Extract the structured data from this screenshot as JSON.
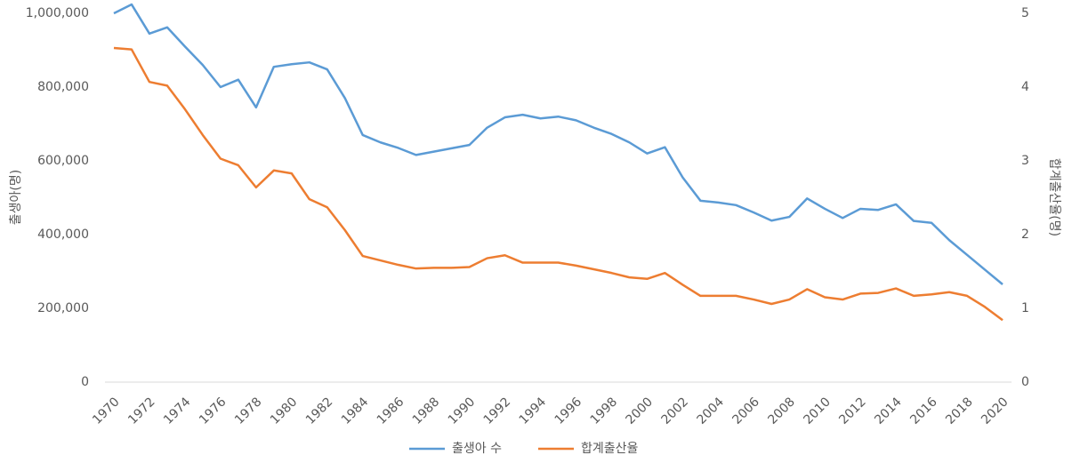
{
  "chart_data": {
    "type": "line",
    "categories": [
      "1970",
      null,
      "1972",
      null,
      "1974",
      null,
      "1976",
      null,
      "1978",
      null,
      "1980",
      null,
      "1982",
      null,
      "1984",
      null,
      "1986",
      null,
      "1988",
      null,
      "1990",
      null,
      "1992",
      null,
      "1994",
      null,
      "1996",
      null,
      "1998",
      null,
      "2000",
      null,
      "2002",
      null,
      "2004",
      null,
      "2006",
      null,
      "2008",
      null,
      "2010",
      null,
      "2012",
      null,
      "2014",
      null,
      "2016",
      null,
      "2018",
      null,
      "2020"
    ],
    "y_label": "출생아(명)",
    "y2_label": "합계출산율(명)",
    "ylim": [
      0,
      1000000
    ],
    "yticks": [
      0,
      {
        "value": 200000,
        "label": "200,000"
      },
      {
        "value": 400000,
        "label": "400,000"
      },
      {
        "value": 600000,
        "label": "600,000"
      },
      {
        "value": 800000,
        "label": "800,000"
      },
      {
        "value": 1000000,
        "label": "1,000,000"
      }
    ],
    "y2lim": [
      0,
      5
    ],
    "y2ticks": [
      0,
      1,
      2,
      3,
      4,
      5
    ],
    "legend": "bottom",
    "series": [
      {
        "name": "출생아 수",
        "color": "#5b9bd5",
        "values": [
          1000000,
          1024000,
          945000,
          962000,
          910000,
          860000,
          800000,
          820000,
          745000,
          855000,
          862000,
          867000,
          848000,
          770000,
          670000,
          650000,
          635000,
          616000,
          625000,
          634000,
          643000,
          690000,
          718000,
          725000,
          715000,
          720000,
          710000,
          690000,
          673000,
          650000,
          620000,
          637000,
          555000,
          492000,
          487000,
          480000,
          460000,
          438000,
          448000,
          498000,
          470000,
          445000,
          470000,
          467000,
          482000,
          437000,
          432000,
          385000,
          345000,
          305000,
          265000
        ]
      },
      {
        "name": "합계출산율",
        "color": "#ed7d31",
        "axis": "y2",
        "values": [
          4.53,
          4.51,
          4.07,
          4.02,
          3.7,
          3.35,
          3.03,
          2.94,
          2.64,
          2.87,
          2.83,
          2.48,
          2.37,
          2.06,
          1.71,
          1.65,
          1.59,
          1.54,
          1.55,
          1.55,
          1.56,
          1.68,
          1.72,
          1.62,
          1.62,
          1.62,
          1.58,
          1.53,
          1.48,
          1.42,
          1.4,
          1.48,
          1.32,
          1.17,
          1.17,
          1.17,
          1.12,
          1.06,
          1.12,
          1.26,
          1.15,
          1.12,
          1.2,
          1.21,
          1.27,
          1.17,
          1.19,
          1.22,
          1.17,
          1.02,
          0.84
        ]
      }
    ]
  }
}
